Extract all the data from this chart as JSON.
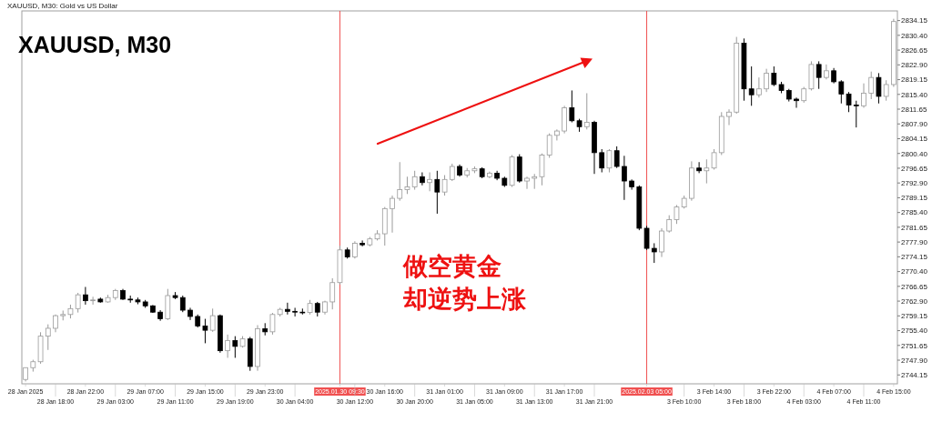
{
  "chart_data": {
    "type": "candlestick",
    "title": "XAUUSD, M30",
    "subtitle": "XAUUSD, M30: Gold vs US Dollar",
    "annotations": [
      "做空黄金",
      "却逆势上涨"
    ],
    "categories": [
      "28 Jan 2025",
      null,
      null,
      null,
      "28 Jan 18:00",
      null,
      null,
      null,
      "28 Jan 22:00",
      null,
      null,
      null,
      "29 Jan 03:00",
      null,
      null,
      null,
      "29 Jan 07:00",
      null,
      null,
      null,
      "29 Jan 11:00",
      null,
      null,
      null,
      "29 Jan 15:00",
      null,
      null,
      null,
      "29 Jan 19:00",
      null,
      null,
      null,
      "29 Jan 23:00",
      null,
      null,
      null,
      "30 Jan 04:00",
      null,
      null,
      null,
      null,
      null,
      "2025.01.30 09:30",
      null,
      "30 Jan 12:00",
      null,
      null,
      null,
      "30 Jan 16:00",
      null,
      null,
      null,
      "30 Jan 20:00",
      null,
      null,
      null,
      "31 Jan 01:00",
      null,
      null,
      null,
      "31 Jan 05:00",
      null,
      null,
      null,
      "31 Jan 09:00",
      null,
      null,
      null,
      "31 Jan 13:00",
      null,
      null,
      null,
      "31 Jan 17:00",
      null,
      null,
      null,
      "31 Jan 21:00",
      null,
      null,
      null,
      null,
      null,
      null,
      "2025.02.03 05:00",
      null,
      null,
      null,
      null,
      "3 Feb 10:00",
      null,
      null,
      null,
      "3 Feb 14:00",
      null,
      null,
      null,
      "3 Feb 18:00",
      null,
      null,
      null,
      "3 Feb 22:00",
      null,
      null,
      null,
      "4 Feb 03:00",
      null,
      null,
      null,
      "4 Feb 07:00",
      null,
      null,
      null,
      "4 Feb 11:00",
      null,
      null,
      null,
      "4 Feb 15:00"
    ],
    "ohlc": [
      [
        2743.0,
        2746.0,
        2742.5,
        2746.0
      ],
      [
        2746.0,
        2748.0,
        2745.0,
        2747.5
      ],
      [
        2747.5,
        2755.0,
        2747.0,
        2754.0
      ],
      [
        2754.0,
        2757.0,
        2750.5,
        2756.0
      ],
      [
        2756.0,
        2759.5,
        2755.0,
        2759.2
      ],
      [
        2759.2,
        2760.5,
        2758.0,
        2759.5
      ],
      [
        2759.5,
        2762.0,
        2758.5,
        2761.0
      ],
      [
        2761.0,
        2765.0,
        2760.0,
        2764.5
      ],
      [
        2764.5,
        2766.5,
        2762.0,
        2763.0
      ],
      [
        2763.0,
        2764.0,
        2762.0,
        2763.2
      ],
      [
        2763.4,
        2763.8,
        2762.5,
        2762.7
      ],
      [
        2762.7,
        2764.5,
        2762.5,
        2763.8
      ],
      [
        2763.8,
        2766.0,
        2763.2,
        2765.6
      ],
      [
        2765.6,
        2766.0,
        2763.2,
        2763.4
      ],
      [
        2763.4,
        2764.3,
        2762.5,
        2763.2
      ],
      [
        2763.2,
        2763.8,
        2762.1,
        2762.7
      ],
      [
        2762.7,
        2763.2,
        2761.2,
        2761.7
      ],
      [
        2761.7,
        2761.9,
        2759.9,
        2760.1
      ],
      [
        2760.1,
        2760.6,
        2757.9,
        2758.4
      ],
      [
        2758.4,
        2766.0,
        2758.1,
        2764.3
      ],
      [
        2764.3,
        2765.2,
        2763.4,
        2763.8
      ],
      [
        2763.8,
        2764.3,
        2760.1,
        2760.6
      ],
      [
        2760.6,
        2761.2,
        2758.1,
        2759.0
      ],
      [
        2759.0,
        2759.5,
        2756.2,
        2756.6
      ],
      [
        2756.6,
        2758.4,
        2752.2,
        2755.5
      ],
      [
        2755.5,
        2761.0,
        2755.1,
        2759.2
      ],
      [
        2759.2,
        2759.5,
        2749.8,
        2750.3
      ],
      [
        2750.3,
        2754.4,
        2748.5,
        2752.9
      ],
      [
        2752.9,
        2754.0,
        2748.5,
        2751.4
      ],
      [
        2751.4,
        2754.0,
        2751.1,
        2753.3
      ],
      [
        2753.3,
        2753.8,
        2745.2,
        2746.3
      ],
      [
        2746.3,
        2756.8,
        2745.2,
        2755.9
      ],
      [
        2755.9,
        2757.3,
        2754.2,
        2755.1
      ],
      [
        2755.1,
        2759.9,
        2754.4,
        2759.5
      ],
      [
        2759.5,
        2761.2,
        2759.0,
        2760.8
      ],
      [
        2760.8,
        2762.5,
        2759.5,
        2760.3
      ],
      [
        2760.3,
        2761.2,
        2759.0,
        2760.1
      ],
      [
        2760.1,
        2761.0,
        2759.5,
        2760.0
      ],
      [
        2760.0,
        2763.2,
        2759.5,
        2762.3
      ],
      [
        2762.3,
        2762.7,
        2759.0,
        2760.1
      ],
      [
        2760.1,
        2763.0,
        2759.5,
        2762.7
      ],
      [
        2762.7,
        2768.7,
        2760.8,
        2767.6
      ],
      [
        2767.6,
        2777.0,
        2767.1,
        2775.9
      ],
      [
        2775.9,
        2776.5,
        2773.7,
        2774.1
      ],
      [
        2774.1,
        2778.1,
        2773.7,
        2777.6
      ],
      [
        2777.6,
        2778.3,
        2776.8,
        2777.2
      ],
      [
        2777.2,
        2779.2,
        2776.8,
        2778.7
      ],
      [
        2778.7,
        2780.9,
        2778.3,
        2780.0
      ],
      [
        2780.0,
        2786.8,
        2777.0,
        2786.4
      ],
      [
        2786.4,
        2789.7,
        2780.3,
        2789.0
      ],
      [
        2789.0,
        2798.2,
        2788.4,
        2791.2
      ],
      [
        2791.2,
        2794.5,
        2790.1,
        2791.9
      ],
      [
        2791.9,
        2796.0,
        2791.2,
        2794.5
      ],
      [
        2794.5,
        2795.6,
        2792.3,
        2793.0
      ],
      [
        2793.0,
        2795.6,
        2790.8,
        2793.8
      ],
      [
        2793.8,
        2796.0,
        2785.1,
        2790.6
      ],
      [
        2790.6,
        2794.9,
        2789.7,
        2793.8
      ],
      [
        2793.8,
        2797.8,
        2793.4,
        2797.1
      ],
      [
        2797.1,
        2797.6,
        2794.5,
        2794.9
      ],
      [
        2794.9,
        2796.7,
        2794.3,
        2796.0
      ],
      [
        2796.0,
        2797.1,
        2795.4,
        2796.5
      ],
      [
        2796.5,
        2796.9,
        2794.1,
        2794.5
      ],
      [
        2794.5,
        2795.8,
        2794.1,
        2795.4
      ],
      [
        2795.4,
        2796.0,
        2793.6,
        2794.1
      ],
      [
        2794.1,
        2794.5,
        2791.9,
        2792.3
      ],
      [
        2792.3,
        2800.0,
        2791.9,
        2799.5
      ],
      [
        2799.5,
        2800.2,
        2793.0,
        2793.4
      ],
      [
        2793.4,
        2794.5,
        2791.4,
        2794.1
      ],
      [
        2794.1,
        2795.2,
        2791.4,
        2794.5
      ],
      [
        2794.5,
        2800.4,
        2792.3,
        2800.0
      ],
      [
        2800.0,
        2805.5,
        2799.3,
        2805.0
      ],
      [
        2805.0,
        2806.5,
        2803.7,
        2806.1
      ],
      [
        2806.1,
        2812.5,
        2805.5,
        2812.0
      ],
      [
        2812.0,
        2816.4,
        2808.3,
        2808.7
      ],
      [
        2808.7,
        2809.2,
        2805.9,
        2807.2
      ],
      [
        2807.2,
        2815.7,
        2806.5,
        2808.3
      ],
      [
        2808.3,
        2808.7,
        2795.2,
        2800.6
      ],
      [
        2800.6,
        2801.5,
        2795.6,
        2796.7
      ],
      [
        2796.7,
        2801.5,
        2795.6,
        2801.1
      ],
      [
        2801.1,
        2802.2,
        2796.7,
        2797.1
      ],
      [
        2797.1,
        2799.8,
        2788.6,
        2793.4
      ],
      [
        2793.4,
        2793.8,
        2791.2,
        2791.9
      ],
      [
        2791.9,
        2792.3,
        2780.9,
        2781.4
      ],
      [
        2781.4,
        2782.0,
        2775.9,
        2776.3
      ],
      [
        2776.3,
        2777.6,
        2772.6,
        2775.4
      ],
      [
        2775.4,
        2781.4,
        2774.1,
        2780.7
      ],
      [
        2780.7,
        2784.7,
        2780.3,
        2783.6
      ],
      [
        2783.6,
        2787.3,
        2782.5,
        2786.8
      ],
      [
        2786.8,
        2789.7,
        2786.4,
        2789.0
      ],
      [
        2789.0,
        2798.4,
        2788.4,
        2796.7
      ],
      [
        2796.7,
        2798.2,
        2795.4,
        2796.0
      ],
      [
        2796.0,
        2798.9,
        2792.8,
        2796.7
      ],
      [
        2796.7,
        2801.5,
        2796.3,
        2800.6
      ],
      [
        2800.6,
        2810.9,
        2800.0,
        2809.8
      ],
      [
        2809.8,
        2811.6,
        2807.6,
        2810.9
      ],
      [
        2810.9,
        2830.0,
        2810.5,
        2828.4
      ],
      [
        2828.4,
        2829.6,
        2813.8,
        2816.8
      ],
      [
        2816.8,
        2822.5,
        2812.5,
        2815.3
      ],
      [
        2815.3,
        2819.7,
        2814.6,
        2816.8
      ],
      [
        2816.8,
        2821.9,
        2816.0,
        2820.8
      ],
      [
        2820.8,
        2822.5,
        2817.5,
        2817.9
      ],
      [
        2817.9,
        2818.6,
        2815.7,
        2816.4
      ],
      [
        2816.4,
        2816.8,
        2813.6,
        2814.2
      ],
      [
        2814.2,
        2814.6,
        2812.0,
        2813.8
      ],
      [
        2813.8,
        2817.3,
        2813.3,
        2816.8
      ],
      [
        2816.8,
        2823.8,
        2816.4,
        2823.0
      ],
      [
        2823.0,
        2823.8,
        2816.8,
        2819.7
      ],
      [
        2819.7,
        2823.0,
        2819.2,
        2821.4
      ],
      [
        2821.4,
        2822.1,
        2818.2,
        2818.6
      ],
      [
        2818.6,
        2819.0,
        2813.1,
        2815.5
      ],
      [
        2815.5,
        2816.0,
        2810.9,
        2812.7
      ],
      [
        2812.7,
        2813.8,
        2807.0,
        2812.5
      ],
      [
        2812.5,
        2818.2,
        2812.0,
        2815.7
      ],
      [
        2815.7,
        2821.2,
        2814.2,
        2819.7
      ],
      [
        2819.7,
        2820.8,
        2813.1,
        2814.9
      ],
      [
        2814.9,
        2819.0,
        2813.8,
        2817.9
      ],
      [
        2817.9,
        2834.6,
        2817.3,
        2833.9
      ]
    ],
    "ylim": [
      2741.9,
      2836.6
    ],
    "yticks": [
      2744.15,
      {
        "value": 2747.9,
        "label": "2747.90"
      },
      2751.65,
      {
        "value": 2755.4,
        "label": "2755.40"
      },
      2759.15,
      {
        "value": 2762.9,
        "label": "2762.90"
      },
      2766.65,
      {
        "value": 2770.4,
        "label": "2770.40"
      },
      2774.15,
      {
        "value": 2777.9,
        "label": "2777.90"
      },
      2781.65,
      {
        "value": 2785.4,
        "label": "2785.40"
      },
      2789.15,
      {
        "value": 2792.9,
        "label": "2792.90"
      },
      2796.65,
      {
        "value": 2800.4,
        "label": "2800.40"
      },
      2804.15,
      {
        "value": 2807.9,
        "label": "2807.90"
      },
      2811.65,
      {
        "value": 2815.4,
        "label": "2815.40"
      },
      2819.15,
      {
        "value": 2822.9,
        "label": "2822.90"
      },
      2826.65,
      {
        "value": 2830.4,
        "label": "2830.40"
      },
      2834.15
    ],
    "ref_lines": [
      {
        "axis": "x",
        "value": "2025.01.30 09:30",
        "color": "#f05050"
      },
      {
        "axis": "x",
        "value": "2025.02.03 05:00",
        "color": "#f05050"
      }
    ],
    "grid": false
  }
}
